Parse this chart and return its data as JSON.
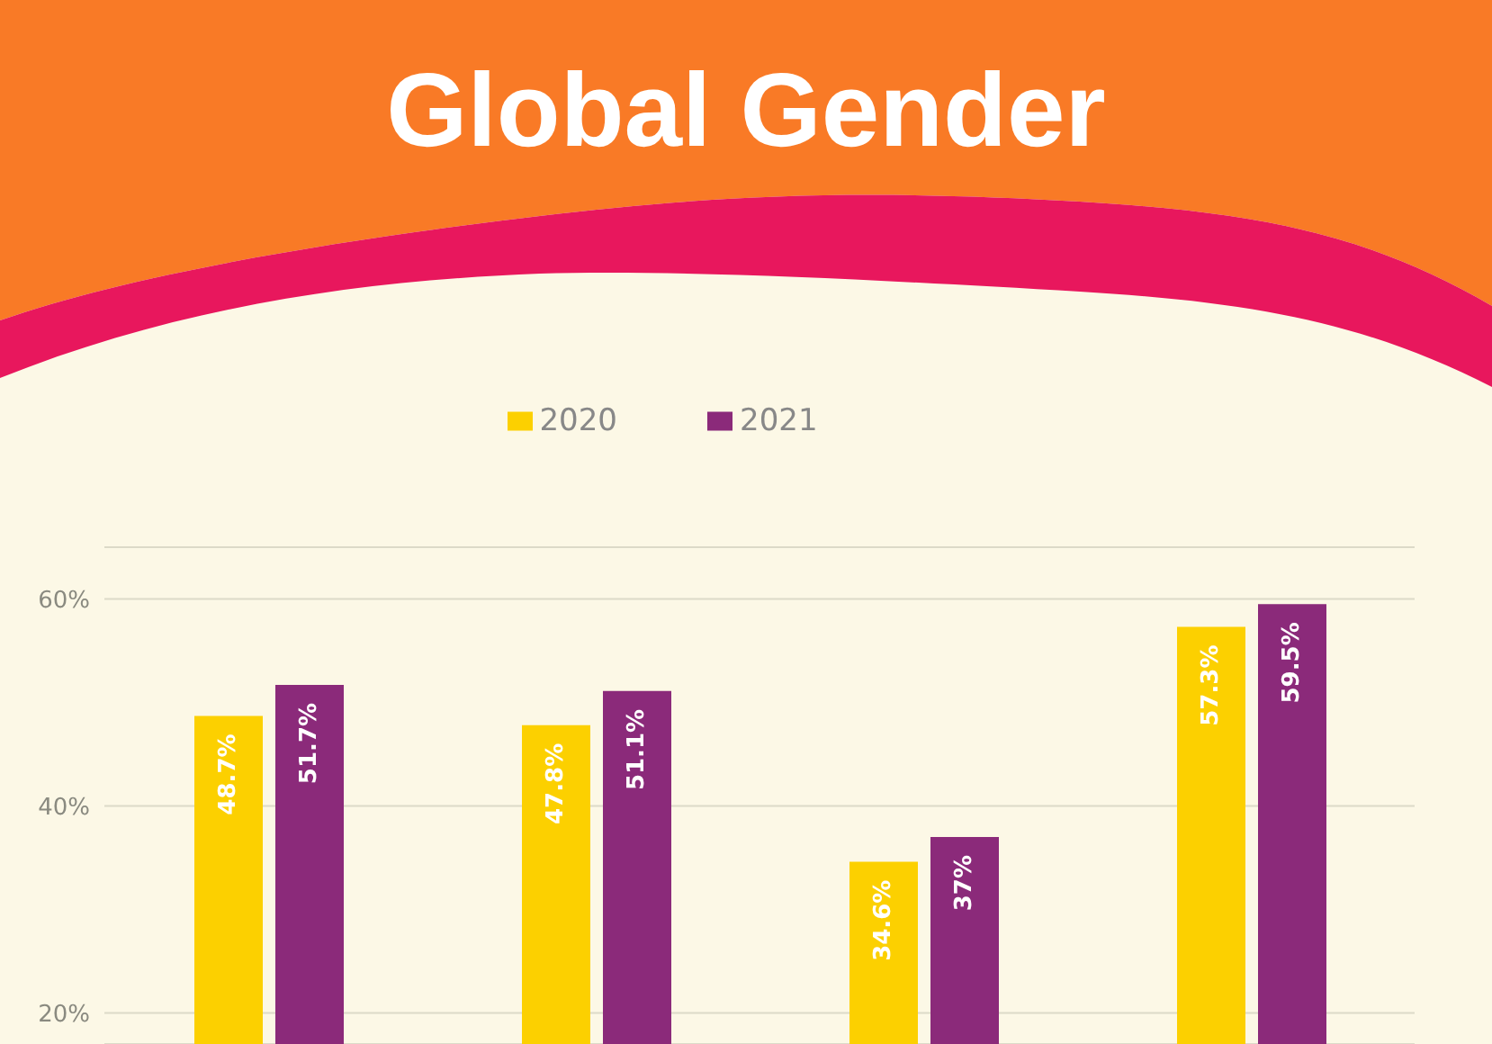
{
  "chart_data": {
    "type": "bar",
    "title": "Global Gender",
    "categories": [
      null,
      null,
      null,
      null
    ],
    "series": [
      {
        "name": "2020",
        "color": "#fcd000",
        "values": [
          48.7,
          47.8,
          34.6,
          57.3
        ],
        "value_labels": [
          "48.7%",
          "47.8%",
          "34.6%",
          "57.3%"
        ]
      },
      {
        "name": "2021",
        "color": "#8b2a7a",
        "values": [
          51.7,
          51.1,
          37,
          59.5
        ],
        "value_labels": [
          "51.7%",
          "51.1%",
          "37%",
          "59.5%"
        ]
      }
    ],
    "ylim": [
      17,
      65
    ],
    "yticks": [
      {
        "value": 20,
        "label": "20%"
      },
      {
        "value": 40,
        "label": "40%"
      },
      {
        "value": 60,
        "label": "60%"
      }
    ],
    "grid": "y",
    "legend": "top",
    "tick_labels": "y"
  }
}
